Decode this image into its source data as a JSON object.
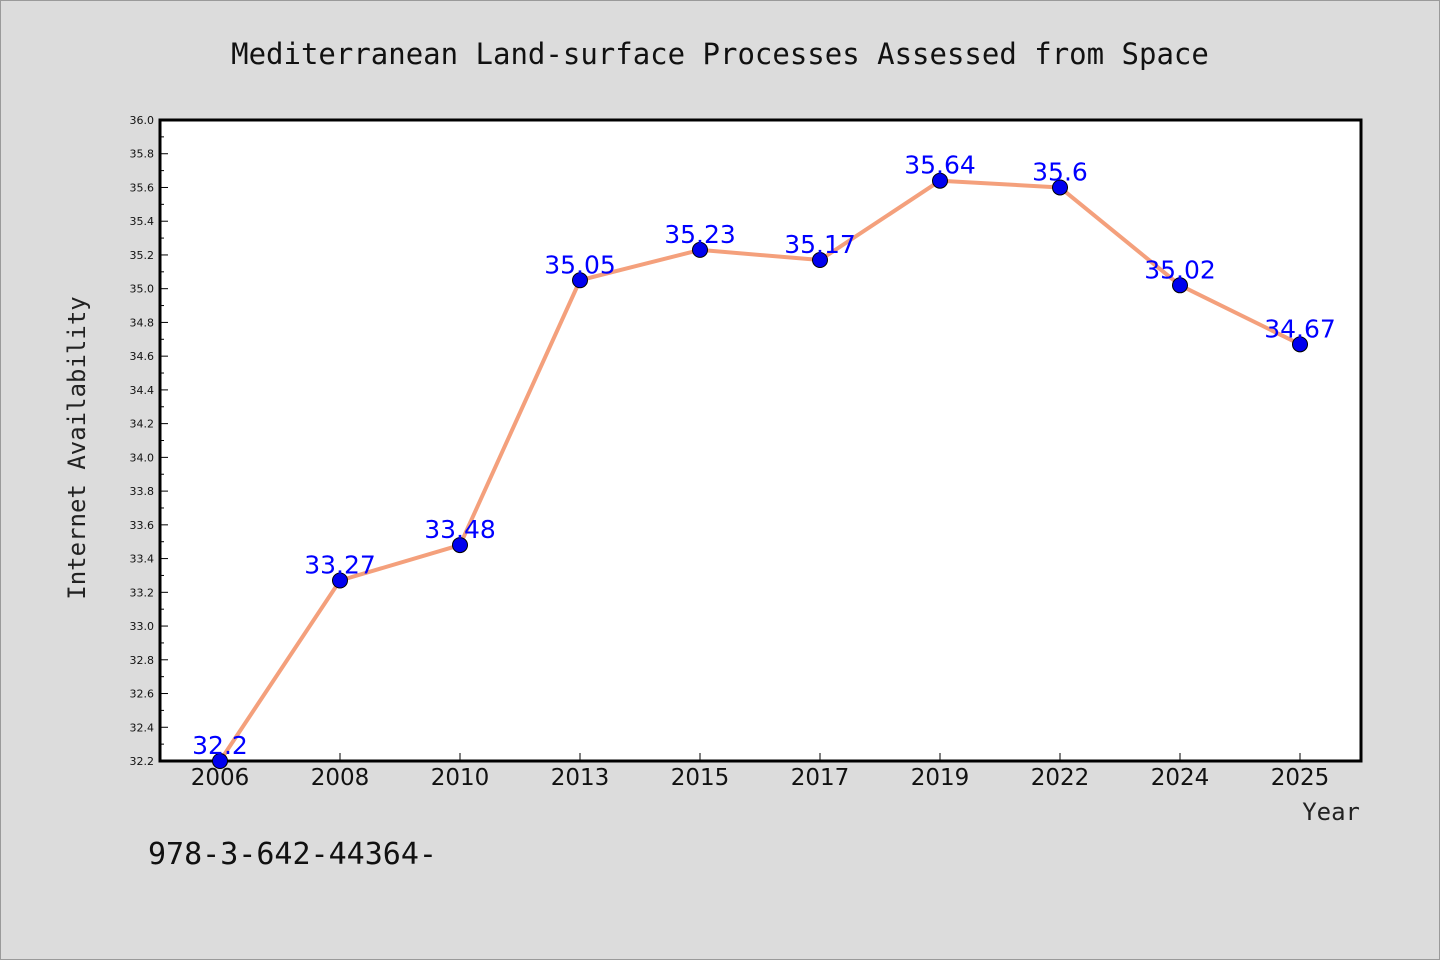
{
  "chart_data": {
    "type": "line",
    "title": "Mediterranean Land-surface Processes Assessed from Space",
    "xlabel": "Year",
    "ylabel": "Internet Availability",
    "categories": [
      "2006",
      "2008",
      "2010",
      "2013",
      "2015",
      "2017",
      "2019",
      "2022",
      "2024",
      "2025"
    ],
    "series": [
      {
        "values": [
          32.2,
          33.27,
          33.48,
          35.05,
          35.23,
          35.17,
          35.64,
          35.6,
          35.02,
          34.67
        ],
        "labels": [
          "32.2",
          "33.27",
          "33.48",
          "35.05",
          "35.23",
          "35.17",
          "35.64",
          "35.6",
          "35.02",
          "34.67"
        ],
        "line_color": "#f4a07c",
        "marker_color": "#0000ee"
      }
    ],
    "ylim": [
      32.2,
      36.0
    ],
    "yticks": [
      "32.2",
      "32.4",
      "32.6",
      "32.8",
      "33.0",
      "33.2",
      "33.4",
      "33.6",
      "33.8",
      "34.0",
      "34.2",
      "34.4",
      "34.6",
      "34.8",
      "35.0",
      "35.2",
      "35.4",
      "35.6",
      "35.8",
      "36.0"
    ],
    "grid": false,
    "legend": "none"
  },
  "footer": {
    "text": "978-3-642-44364-"
  }
}
